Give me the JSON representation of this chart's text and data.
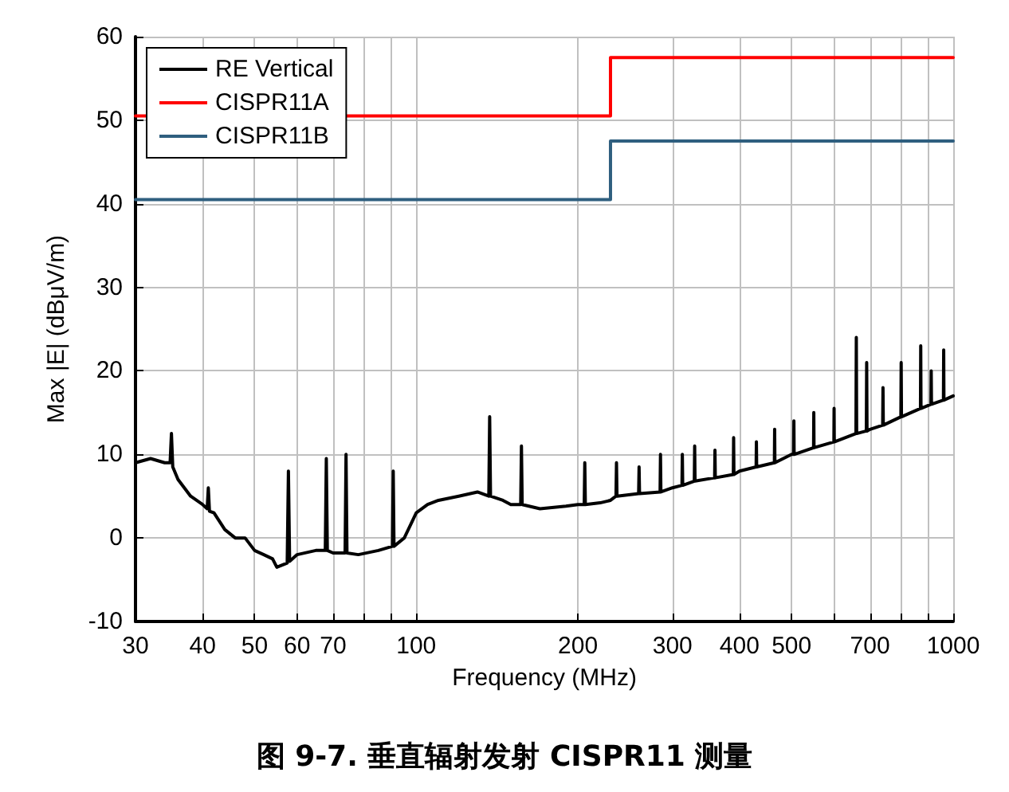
{
  "chart_data": {
    "type": "line",
    "title": "图 9-7. 垂直辐射发射 CISPR11 测量",
    "xlabel": "Frequency (MHz)",
    "ylabel": "Max |E| (dBμV/m)",
    "log": "x",
    "grid": true,
    "legend": "top left",
    "marker": "none",
    "line_style": "solid",
    "xlim": [
      30,
      1000
    ],
    "ylim": [
      -10,
      60
    ],
    "xticks": [
      30,
      40,
      50,
      60,
      70,
      {
        "value": 80,
        "label": null
      },
      {
        "value": 90,
        "label": null
      },
      100,
      200,
      300,
      400,
      500,
      {
        "value": 600,
        "label": null
      },
      700,
      {
        "value": 800,
        "label": null
      },
      {
        "value": 900,
        "label": null
      },
      1000
    ],
    "yticks": [
      -10,
      0,
      10,
      20,
      30,
      40,
      50,
      60
    ],
    "series": [
      {
        "name": "RE Vertical",
        "type": "line",
        "color": "#000000",
        "x": [
          30,
          32,
          34,
          34.8,
          35,
          35.2,
          36,
          38,
          40,
          40.8,
          41,
          41.2,
          42,
          44,
          46,
          48,
          50,
          52,
          54,
          55,
          57.5,
          57.8,
          58.1,
          60,
          65,
          67.7,
          68,
          68.3,
          70,
          73.7,
          74,
          74.3,
          78,
          85,
          90.3,
          90.6,
          90.9,
          95,
          100,
          105,
          110,
          120,
          130,
          136.5,
          137,
          137.5,
          145,
          150,
          156.5,
          157,
          157.5,
          170,
          190,
          200,
          205.5,
          206,
          206.5,
          220,
          230,
          235.5,
          236,
          236.5,
          259.5,
          260,
          260.5,
          284.5,
          285,
          285.5,
          300,
          312.5,
          313,
          313.5,
          329.5,
          330,
          330.5,
          359.5,
          360,
          360.5,
          389.5,
          390,
          390.5,
          400,
          429.5,
          430,
          430.5,
          464.5,
          465,
          465.5,
          500,
          504.5,
          505,
          505.5,
          549.5,
          550,
          550.5,
          599.5,
          600,
          600.5,
          659,
          660,
          661,
          689,
          690,
          691,
          700,
          739,
          740,
          741,
          799,
          800,
          801,
          869,
          870,
          871,
          909,
          910,
          911,
          959,
          960,
          961,
          1000
        ],
        "values": [
          9,
          9.5,
          9,
          9,
          12.5,
          8.5,
          7,
          5,
          4,
          3.5,
          6,
          3.2,
          3,
          1,
          0,
          0,
          -1.5,
          -2,
          -2.5,
          -3.5,
          -3,
          8,
          -2.8,
          -2,
          -1.5,
          -1.5,
          9.5,
          -1.5,
          -1.8,
          -1.8,
          10,
          -1.8,
          -2,
          -1.5,
          -1,
          8,
          -1,
          0,
          3,
          4,
          4.5,
          5,
          5.5,
          5,
          14.5,
          5,
          4.5,
          4,
          4,
          11,
          4,
          3.5,
          3.8,
          4,
          4,
          9,
          4,
          4.2,
          4.5,
          5,
          9,
          5,
          5.3,
          8.5,
          5.3,
          5.5,
          10,
          5.5,
          6,
          6.3,
          10,
          6.3,
          6.8,
          11,
          6.8,
          7.2,
          10.5,
          7.2,
          7.6,
          12,
          7.6,
          8,
          8.5,
          11.5,
          8.5,
          9,
          13,
          9,
          10,
          10,
          14,
          10,
          10.8,
          15,
          10.8,
          11.5,
          15.5,
          11.5,
          12.5,
          24,
          12.5,
          12.8,
          21,
          12.8,
          13,
          13.5,
          18,
          13.5,
          14.5,
          21,
          14.5,
          15.5,
          23,
          15.5,
          16,
          20,
          16,
          16.5,
          22.5,
          16.5,
          17
        ]
      },
      {
        "name": "CISPR11A",
        "type": "step",
        "color": "#ff0000",
        "x": [
          30,
          230,
          1000
        ],
        "values": [
          50.5,
          57.5,
          57.5
        ]
      },
      {
        "name": "CISPR11B",
        "type": "step",
        "color": "#2f5f7f",
        "x": [
          30,
          230,
          1000
        ],
        "values": [
          40.5,
          47.5,
          47.5
        ]
      }
    ]
  }
}
